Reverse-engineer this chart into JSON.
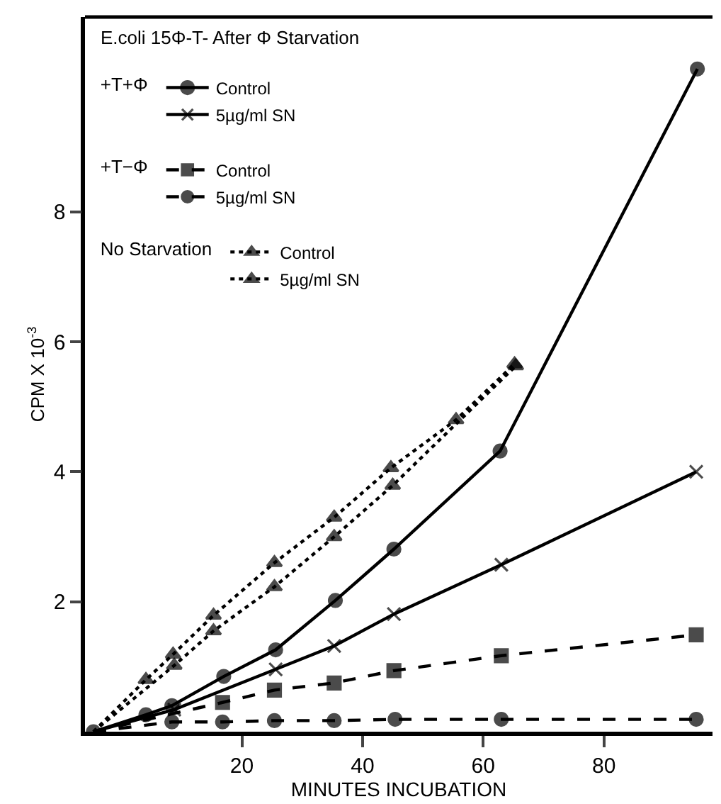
{
  "chart_data": {
    "type": "line",
    "xlabel": "MINUTES INCUBATION",
    "ylabel": "CPM X 10$^{-3}$",
    "legend_title": "E.coli 15Φ-T- After Φ Starvation",
    "annotations": [
      "+T+Φ",
      "+T−Φ",
      "No Starvation"
    ],
    "xlim": [
      -6,
      98
    ],
    "xticks": [
      20,
      40,
      60,
      80
    ],
    "ylim": [
      0,
      11
    ],
    "yticks": [
      2,
      4,
      6,
      8
    ],
    "grid": false,
    "legend": "top left",
    "series": [
      {
        "name": "Control",
        "color": "#000000",
        "marker": "circle",
        "line_style": "solid",
        "x": [
          -4.6,
          4.1,
          8.4,
          17,
          25.6,
          35.5,
          45.2,
          62.8,
          95.5
        ],
        "values": [
          0,
          0.26,
          0.4,
          0.85,
          1.26,
          2.02,
          2.81,
          4.32,
          10.2
        ]
      },
      {
        "name": "5µg/ml SN",
        "color": "#000000",
        "marker": "cross",
        "line_style": "solid",
        "x": [
          -4.6,
          8.8,
          25.6,
          35.3,
          45.2,
          63,
          95.3
        ],
        "values": [
          0,
          0.34,
          0.96,
          1.32,
          1.81,
          2.57,
          4.0
        ]
      },
      {
        "name": "Control",
        "color": "#000000",
        "marker": "square",
        "line_style": "dashed",
        "x": [
          -4.6,
          16.8,
          25.4,
          35.3,
          45.2,
          63,
          95.3
        ],
        "values": [
          0,
          0.45,
          0.64,
          0.75,
          0.94,
          1.17,
          1.49
        ]
      },
      {
        "name": "5µg/ml SN",
        "color": "#000000",
        "marker": "circle",
        "line_style": "dashed",
        "x": [
          -4.6,
          8.4,
          16.8,
          25.4,
          35.3,
          45.4,
          63,
          95.3
        ],
        "values": [
          0,
          0.15,
          0.15,
          0.17,
          0.17,
          0.19,
          0.19,
          0.19
        ]
      },
      {
        "name": "Control",
        "color": "#000000",
        "marker": "triangle",
        "line_style": "dotted",
        "x": [
          -4.6,
          8.8,
          15.3,
          25.4,
          35.3,
          45,
          65.4
        ],
        "values": [
          0,
          1.02,
          1.55,
          2.23,
          3.0,
          3.79,
          5.63
        ]
      },
      {
        "name": "5µg/ml SN",
        "color": "#000000",
        "marker": "triangle",
        "line_style": "dotted",
        "x": [
          -4.6,
          4.1,
          8.6,
          15.3,
          25.4,
          35.3,
          44.7,
          55.5,
          65.2
        ],
        "values": [
          0,
          0.8,
          1.19,
          1.79,
          2.6,
          3.3,
          4.06,
          4.8,
          5.66
        ]
      }
    ]
  }
}
